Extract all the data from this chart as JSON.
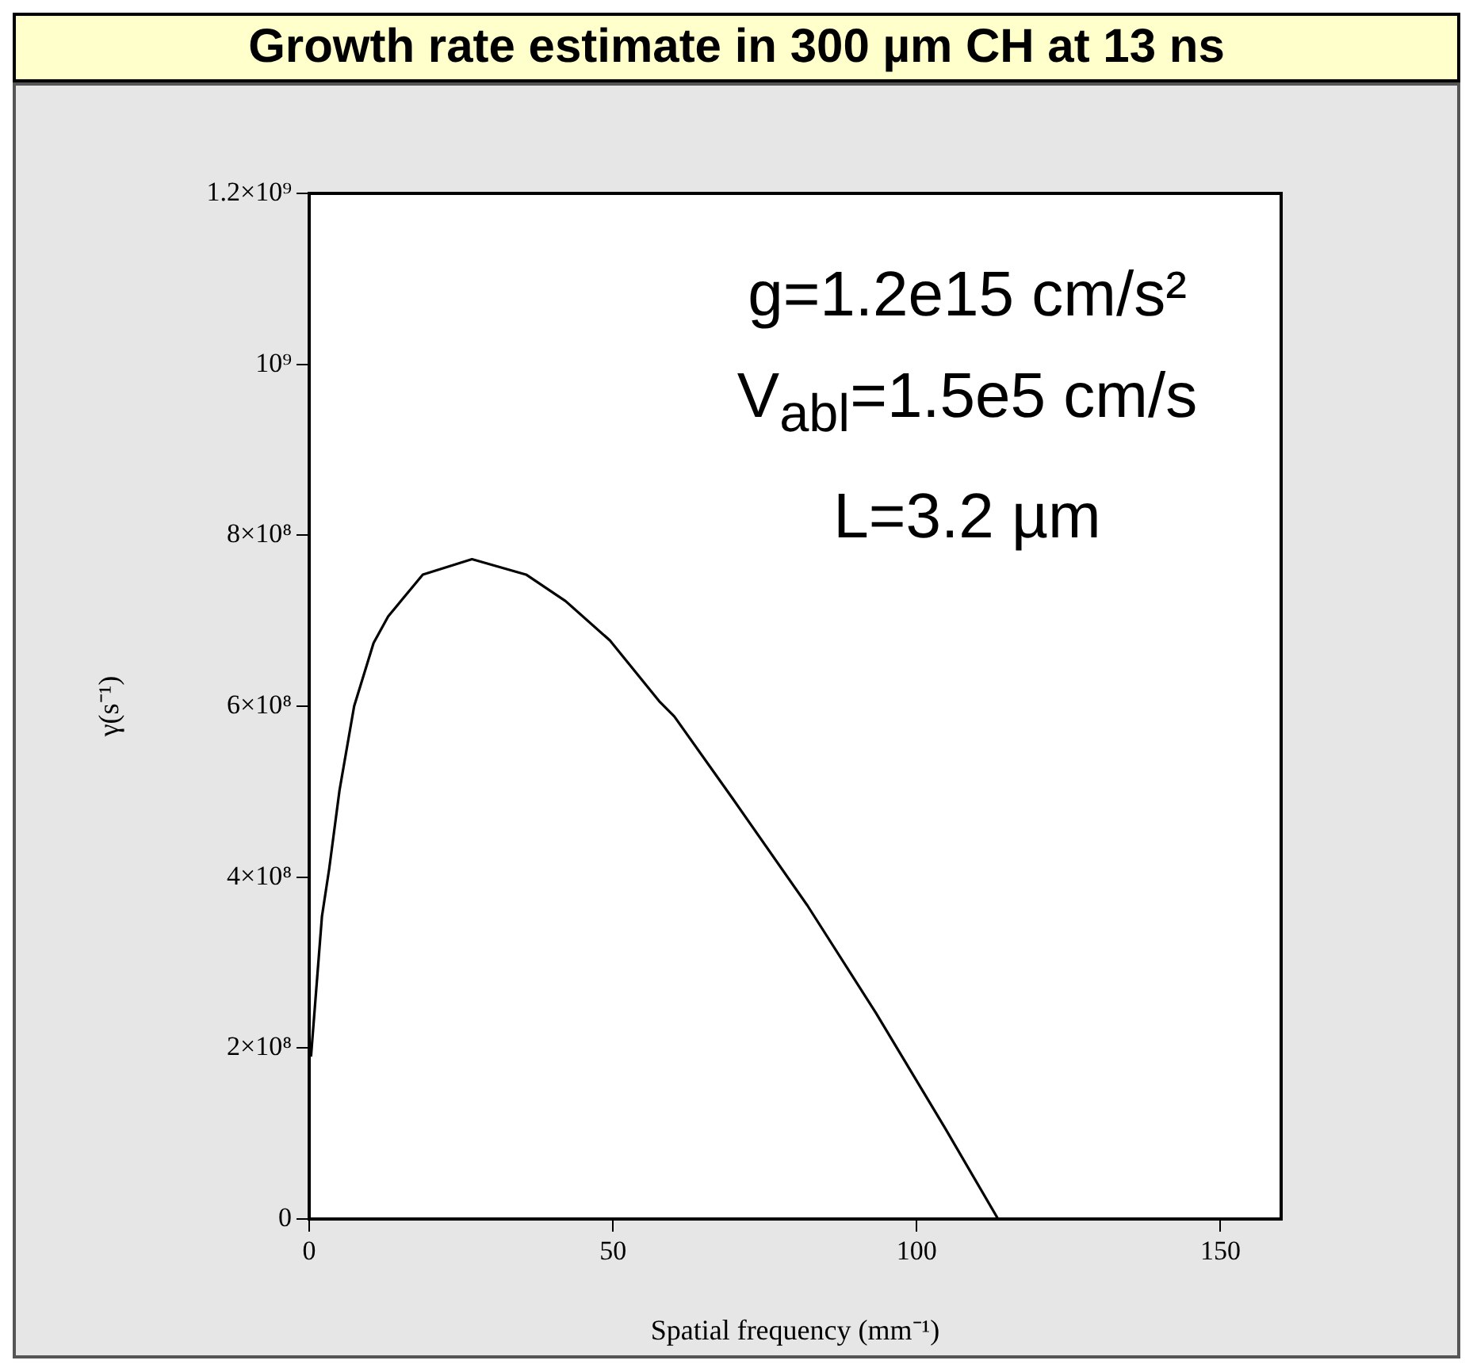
{
  "chart_data": {
    "type": "line",
    "title": "Growth rate estimate in 300 µm CH at 13 ns",
    "xlabel": "Spatial frequency (mm⁻¹)",
    "ylabel": "γ(s⁻¹)",
    "annotations": [
      "g=1.2e15 cm/s²",
      "V$_{abl}$=1.5e5 cm/s",
      "L=3.2 µm"
    ],
    "x": [
      0.3,
      2.1,
      3.3,
      5.0,
      7.4,
      10.6,
      13.0,
      18.7,
      26.8,
      35.7,
      42.2,
      49.5,
      57.6,
      60.1,
      69.8,
      82.0,
      93.3,
      104.7,
      113.4
    ],
    "series": [
      {
        "color": "#000000",
        "values": [
          190000000,
          354000000,
          410000000,
          502000000,
          600000000,
          674000000,
          705000000,
          754000000,
          772000000,
          754000000,
          723000000,
          677000000,
          606000000,
          588000000,
          491000000,
          367000000,
          241000000,
          106000000,
          0
        ]
      }
    ],
    "xlim": [
      0,
      160
    ],
    "xticks": [
      0,
      50,
      100,
      150
    ],
    "ylim": [
      0,
      1200000000
    ],
    "yticks": [
      {
        "value": 0,
        "label": "0"
      },
      {
        "value": 200000000,
        "label": "2×10⁸"
      },
      {
        "value": 400000000,
        "label": "4×10⁸"
      },
      {
        "value": 600000000,
        "label": "6×10⁸"
      },
      {
        "value": 800000000,
        "label": "8×10⁸"
      },
      {
        "value": 1000000000,
        "label": "10⁹"
      },
      {
        "value": 1200000000,
        "label": "1.2×10⁹"
      }
    ],
    "legend": false,
    "marker": "none",
    "line_style": "solid"
  }
}
